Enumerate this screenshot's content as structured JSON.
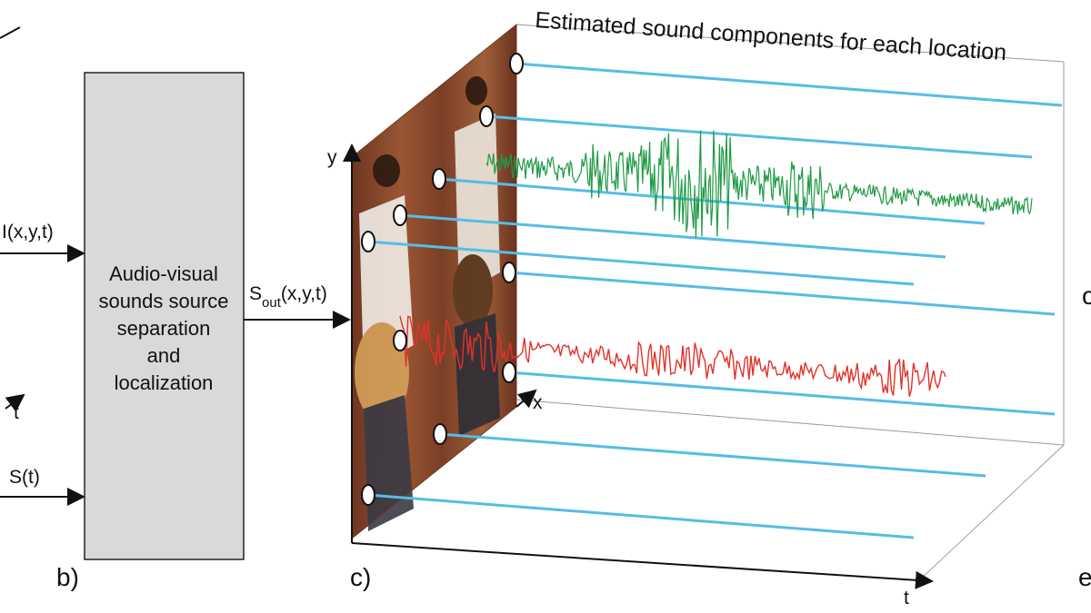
{
  "header": {
    "title": "Estimated sound components for each location"
  },
  "inputs": {
    "image_signal": "I(x,y,t)",
    "audio_signal": "S(t)",
    "time_axis": "t"
  },
  "block": {
    "lines": [
      "Audio-visual",
      "sounds source",
      "separation",
      "and",
      "localization"
    ]
  },
  "output": {
    "base": "S",
    "subscript": "out",
    "args": "(x,y,t)"
  },
  "axes": {
    "x": "x",
    "y": "y",
    "t": "t"
  },
  "panels": {
    "b": "b)",
    "c": "c)",
    "d": "c",
    "e": "e"
  },
  "colors": {
    "trace_line": "#55bde6",
    "waveform_1": "#1f9a45",
    "waveform_2": "#e2322a",
    "block_fill": "#d8d9db",
    "frame_bg": "#8a4a2b"
  }
}
